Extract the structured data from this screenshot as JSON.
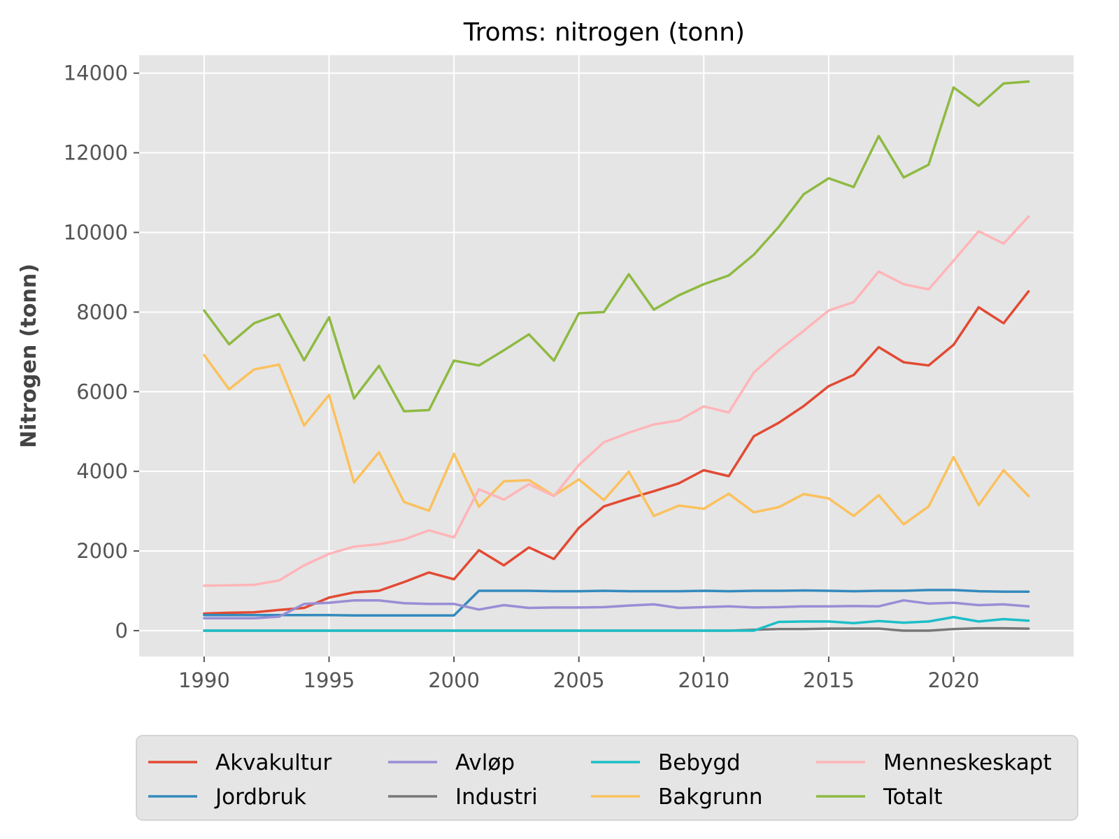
{
  "chart_data": {
    "type": "line",
    "title": "Troms: nitrogen (tonn)",
    "xlabel": "",
    "ylabel": "Nitrogen (tonn)",
    "xlim": [
      1987.4,
      2024.8
    ],
    "ylim": [
      -650,
      14450
    ],
    "x_ticks": [
      1990,
      1995,
      2000,
      2005,
      2010,
      2015,
      2020
    ],
    "y_ticks": [
      0,
      2000,
      4000,
      6000,
      8000,
      10000,
      12000,
      14000
    ],
    "grid": true,
    "legend_position": "bottom",
    "x": [
      1990,
      1991,
      1992,
      1993,
      1994,
      1995,
      1996,
      1997,
      1998,
      1999,
      2000,
      2001,
      2002,
      2003,
      2004,
      2005,
      2006,
      2007,
      2008,
      2009,
      2010,
      2011,
      2012,
      2013,
      2014,
      2015,
      2016,
      2017,
      2018,
      2019,
      2020,
      2021,
      2022,
      2023
    ],
    "series": [
      {
        "name": "Akvakultur",
        "color": "#e24a33",
        "values": [
          430,
          450,
          460,
          520,
          570,
          830,
          960,
          1000,
          1220,
          1460,
          1290,
          2020,
          1640,
          2090,
          1800,
          2580,
          3120,
          3320,
          3500,
          3700,
          4030,
          3880,
          4880,
          5220,
          5640,
          6140,
          6420,
          7120,
          6740,
          6660,
          7180,
          8120,
          7720,
          8520
        ]
      },
      {
        "name": "Jordbruk",
        "color": "#348abd",
        "values": [
          390,
          390,
          390,
          390,
          390,
          390,
          380,
          380,
          380,
          380,
          380,
          1000,
          1000,
          1000,
          990,
          990,
          1000,
          990,
          990,
          990,
          1000,
          990,
          1000,
          1000,
          1010,
          1000,
          990,
          1000,
          1000,
          1020,
          1020,
          990,
          980,
          980
        ]
      },
      {
        "name": "Avløp",
        "color": "#988ed5",
        "values": [
          310,
          310,
          310,
          350,
          670,
          700,
          760,
          760,
          690,
          670,
          670,
          530,
          640,
          570,
          580,
          580,
          590,
          630,
          660,
          570,
          590,
          610,
          580,
          590,
          610,
          610,
          620,
          610,
          760,
          680,
          700,
          640,
          660,
          610
        ]
      },
      {
        "name": "Industri",
        "color": "#777777",
        "values": [
          0,
          0,
          0,
          0,
          0,
          0,
          0,
          0,
          0,
          0,
          0,
          0,
          0,
          0,
          0,
          0,
          0,
          0,
          0,
          0,
          0,
          0,
          20,
          40,
          40,
          50,
          50,
          50,
          0,
          0,
          40,
          60,
          60,
          50
        ]
      },
      {
        "name": "Bebygd",
        "color": "#1cbec8",
        "values": [
          0,
          0,
          0,
          0,
          0,
          0,
          0,
          0,
          0,
          0,
          0,
          0,
          0,
          0,
          0,
          0,
          0,
          0,
          0,
          0,
          0,
          0,
          0,
          220,
          230,
          230,
          190,
          240,
          200,
          230,
          340,
          230,
          290,
          250
        ]
      },
      {
        "name": "Bakgrunn",
        "color": "#fbc15e",
        "values": [
          6920,
          6060,
          6560,
          6680,
          5150,
          5920,
          3720,
          4480,
          3230,
          3010,
          4440,
          3110,
          3750,
          3780,
          3390,
          3800,
          3280,
          3990,
          2880,
          3140,
          3060,
          3440,
          2970,
          3100,
          3430,
          3320,
          2880,
          3400,
          2670,
          3120,
          4360,
          3150,
          4030,
          3380
        ]
      },
      {
        "name": "Menneskeskapt",
        "color": "#ffb5b8",
        "values": [
          1130,
          1140,
          1150,
          1260,
          1640,
          1930,
          2110,
          2170,
          2290,
          2520,
          2340,
          3550,
          3290,
          3680,
          3380,
          4160,
          4730,
          4970,
          5180,
          5280,
          5630,
          5480,
          6480,
          7040,
          7530,
          8040,
          8250,
          9020,
          8700,
          8570,
          9290,
          10030,
          9720,
          10400
        ]
      },
      {
        "name": "Totalt",
        "color": "#8eba42",
        "values": [
          8040,
          7190,
          7720,
          7950,
          6790,
          7870,
          5830,
          6650,
          5510,
          5540,
          6780,
          6660,
          7040,
          7440,
          6780,
          7970,
          8000,
          8950,
          8060,
          8420,
          8700,
          8920,
          9440,
          10140,
          10960,
          11360,
          11140,
          12420,
          11380,
          11700,
          13640,
          13180,
          13740,
          13790
        ]
      }
    ],
    "legend_order": [
      0,
      1,
      2,
      3,
      4,
      5,
      6,
      7
    ]
  }
}
